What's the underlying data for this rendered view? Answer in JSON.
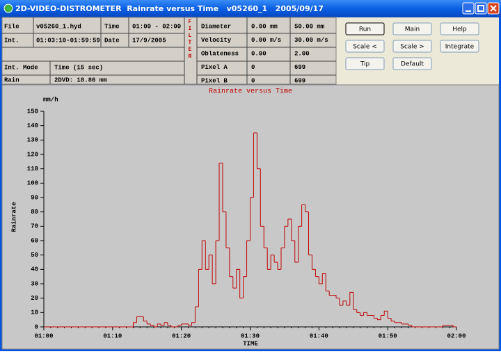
{
  "window": {
    "title": "2D-VIDEO-DISTROMETER  Rainrate versus Time   v05260_1   2005/09/17"
  },
  "info": {
    "left": [
      [
        "File",
        "v05260_1.hyd",
        "Time",
        "01:00 - 02:00"
      ],
      [
        "Int.",
        "01:03:10-01:59:59",
        "Date",
        "17/9/2005"
      ],
      [
        "Int. Mode",
        "Time (15 sec)"
      ],
      [
        "Rain",
        "2DVD: 18.86 mm"
      ]
    ],
    "filter": "FILTER",
    "right": [
      [
        "Diameter",
        "0.00 mm",
        "50.00 mm"
      ],
      [
        "Velocity",
        "0.00 m/s",
        "30.00 m/s"
      ],
      [
        "Oblateness",
        "0.00",
        "2.00"
      ],
      [
        "Pixel A",
        "0",
        "699"
      ],
      [
        "Pixel B",
        "0",
        "699"
      ]
    ]
  },
  "buttons": [
    "Run",
    "Main",
    "Help",
    "Scale <",
    "Scale >",
    "Integrate",
    "Tip",
    "Default"
  ],
  "chart_data": {
    "type": "step",
    "title": "Rainrate versus Time",
    "y_unit": "mm/h",
    "ylabel": "Rainrate",
    "xlabel": "TIME",
    "xlim": [
      0,
      60
    ],
    "ylim": [
      0,
      150
    ],
    "xticks": [
      {
        "value": 0,
        "label": "01:00"
      },
      {
        "value": 10,
        "label": "01:10"
      },
      {
        "value": 20,
        "label": "01:20"
      },
      {
        "value": 30,
        "label": "01:30"
      },
      {
        "value": 40,
        "label": "01:40"
      },
      {
        "value": 50,
        "label": "01:50"
      },
      {
        "value": 60,
        "label": "02:00"
      }
    ],
    "yticks": [
      0,
      10,
      20,
      30,
      40,
      50,
      60,
      70,
      80,
      90,
      100,
      110,
      120,
      130,
      140,
      150
    ],
    "series": [
      {
        "color": "#c00000",
        "x": [
          0,
          12,
          12.5,
          13,
          13.5,
          14,
          14.5,
          15,
          15.5,
          16,
          16.5,
          17,
          17.5,
          18,
          18.5,
          19,
          19.5,
          20,
          20.5,
          21,
          21.5,
          22,
          22.5,
          23,
          23.5,
          24,
          24.5,
          25,
          25.5,
          26,
          26.5,
          27,
          27.5,
          28,
          28.5,
          29,
          29.5,
          30,
          30.5,
          31,
          31.5,
          32,
          32.5,
          33,
          33.5,
          34,
          34.5,
          35,
          35.5,
          36,
          36.5,
          37,
          37.5,
          38,
          38.5,
          39,
          39.5,
          40,
          40.5,
          41,
          41.5,
          42,
          42.5,
          43,
          43.5,
          44,
          44.5,
          45,
          45.5,
          46,
          46.5,
          47,
          47.5,
          48,
          48.5,
          49,
          49.5,
          50,
          50.5,
          51,
          51.5,
          52,
          52.5,
          53,
          53.5,
          54,
          54.5,
          55,
          55.5,
          56,
          56.5,
          57,
          57.5,
          58,
          58.5,
          59,
          59.5
        ],
        "values": [
          0,
          0,
          0,
          3,
          7,
          7,
          4,
          2,
          1,
          0,
          2,
          1,
          3,
          1,
          0,
          0,
          1,
          2,
          2,
          1,
          3,
          14,
          40,
          60,
          40,
          50,
          30,
          60,
          114,
          80,
          55,
          35,
          27,
          40,
          20,
          35,
          60,
          90,
          135,
          110,
          70,
          55,
          40,
          50,
          45,
          40,
          55,
          70,
          75,
          60,
          45,
          70,
          85,
          80,
          50,
          40,
          35,
          30,
          37,
          25,
          22,
          22,
          20,
          15,
          18,
          15,
          24,
          12,
          10,
          8,
          10,
          8,
          8,
          6,
          5,
          8,
          11,
          6,
          4,
          3,
          3,
          2,
          2,
          1,
          0,
          0,
          0,
          0,
          0,
          0,
          0,
          0,
          0,
          1,
          1,
          1,
          0
        ]
      }
    ]
  }
}
